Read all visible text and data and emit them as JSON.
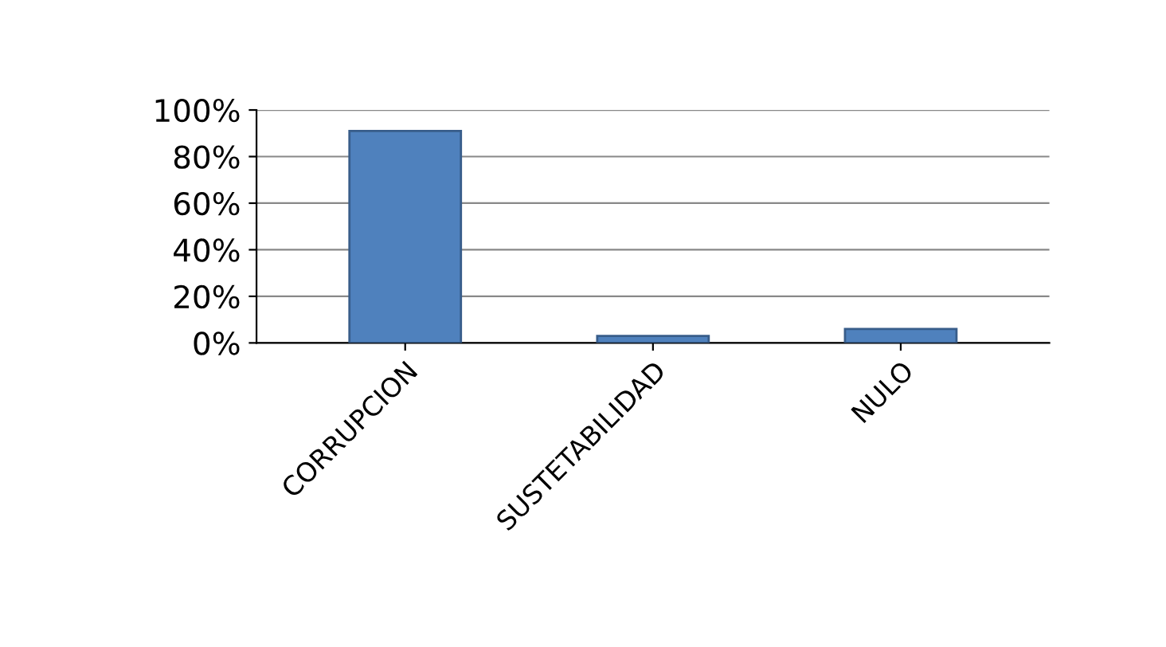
{
  "chart_data": {
    "type": "bar",
    "categories": [
      "CORRUPCION",
      "SUSTETABILIDAD",
      "NULO"
    ],
    "values": [
      91,
      3,
      6
    ],
    "color": "#4f81bd",
    "ylim": [
      0,
      100
    ],
    "yticks": [
      {
        "value": 0,
        "label": "0%"
      },
      {
        "value": 20,
        "label": "20%"
      },
      {
        "value": 40,
        "label": "40%"
      },
      {
        "value": 60,
        "label": "60%"
      },
      {
        "value": 80,
        "label": "80%"
      },
      {
        "value": 100,
        "label": "100%"
      }
    ],
    "grid": "y"
  }
}
